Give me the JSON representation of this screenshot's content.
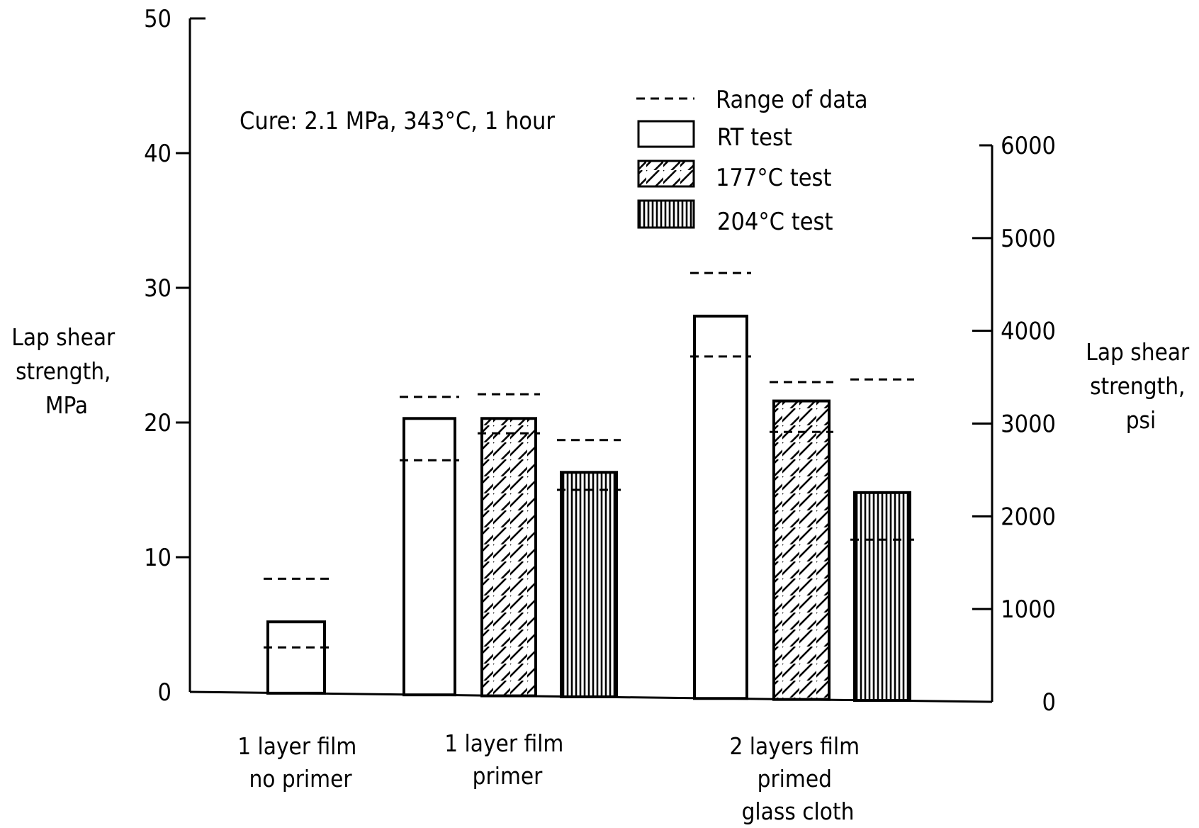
{
  "chart_data": {
    "type": "bar",
    "title": "",
    "annotation": "Cure: 2.1 MPa, 343°C, 1 hour",
    "y_left": {
      "label_lines": [
        "Lap shear",
        "strength,",
        "MPa"
      ],
      "ticks": [
        "0",
        "10",
        "20",
        "30",
        "40",
        "50"
      ],
      "ylim": [
        0,
        50
      ]
    },
    "y_right": {
      "label_lines": [
        "Lap shear",
        "strength,",
        "psi"
      ],
      "ticks": [
        "0",
        "1000",
        "2000",
        "3000",
        "4000",
        "5000",
        "6000"
      ],
      "ylim": [
        0,
        6000
      ]
    },
    "legend": {
      "range_label": "Range of data",
      "entries": [
        {
          "label": "RT test",
          "pattern": "open"
        },
        {
          "label": "177°C test",
          "pattern": "diagonal-hatch"
        },
        {
          "label": "204°C test",
          "pattern": "vertical-hatch"
        }
      ]
    },
    "groups": [
      {
        "label_lines": [
          "1 layer film",
          "no primer"
        ],
        "bars": [
          {
            "series": "RT test",
            "value": 5.2,
            "range": [
              3.3,
              8.4
            ]
          }
        ]
      },
      {
        "label_lines": [
          "1 layer film",
          "primer"
        ],
        "bars": [
          {
            "series": "RT test",
            "value": 20.3,
            "range": [
              17.2,
              21.9
            ]
          },
          {
            "series": "177°C test",
            "value": 20.3,
            "range": [
              19.2,
              22.1
            ]
          },
          {
            "series": "204°C test",
            "value": 16.3,
            "range": [
              15.0,
              18.7
            ]
          }
        ]
      },
      {
        "label_lines": [
          "2 layers film",
          "primed",
          "glass cloth"
        ],
        "bars": [
          {
            "series": "RT test",
            "value": 27.9,
            "range": [
              24.9,
              31.1
            ]
          },
          {
            "series": "177°C test",
            "value": 21.6,
            "range": [
              19.3,
              23.0
            ]
          },
          {
            "series": "204°C test",
            "value": 14.8,
            "range": [
              11.3,
              23.2
            ]
          }
        ]
      }
    ]
  }
}
